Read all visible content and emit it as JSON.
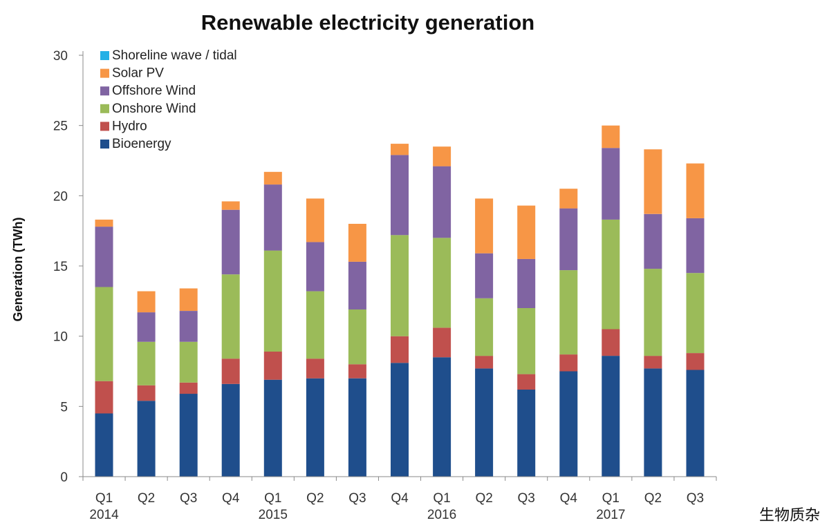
{
  "chart_data": {
    "type": "bar",
    "stacked": true,
    "title": "Renewable electricity generation",
    "ylabel": "Generation (TWh)",
    "xlabel": "",
    "ylim": [
      0,
      30
    ],
    "yticks": [
      0,
      5,
      10,
      15,
      20,
      25,
      30
    ],
    "grid": false,
    "legend_position": "top-left",
    "categories": [
      "Q1",
      "Q2",
      "Q3",
      "Q4",
      "Q1",
      "Q2",
      "Q3",
      "Q4",
      "Q1",
      "Q2",
      "Q3",
      "Q4",
      "Q1",
      "Q2",
      "Q3"
    ],
    "year_labels": [
      {
        "label": "2014",
        "category_index": 0
      },
      {
        "label": "2015",
        "category_index": 4
      },
      {
        "label": "2016",
        "category_index": 8
      },
      {
        "label": "2017",
        "category_index": 12
      }
    ],
    "series": [
      {
        "name": "Bioenergy",
        "color": "#1f4e8c",
        "values": [
          4.5,
          5.4,
          5.9,
          6.6,
          6.9,
          7.0,
          7.0,
          8.1,
          8.5,
          7.7,
          6.2,
          7.5,
          8.6,
          7.7,
          7.6
        ]
      },
      {
        "name": "Hydro",
        "color": "#c0504d",
        "values": [
          2.3,
          1.1,
          0.8,
          1.8,
          2.0,
          1.4,
          1.0,
          1.9,
          2.1,
          0.9,
          1.1,
          1.2,
          1.9,
          0.9,
          1.2
        ]
      },
      {
        "name": "Onshore Wind",
        "color": "#9bbb59",
        "values": [
          6.7,
          3.1,
          2.9,
          6.0,
          7.2,
          4.8,
          3.9,
          7.2,
          6.4,
          4.1,
          4.7,
          6.0,
          7.8,
          6.2,
          5.7
        ]
      },
      {
        "name": "Offshore Wind",
        "color": "#8064a2",
        "values": [
          4.3,
          2.1,
          2.2,
          4.6,
          4.7,
          3.5,
          3.4,
          5.7,
          5.1,
          3.2,
          3.5,
          4.4,
          5.1,
          3.9,
          3.9
        ]
      },
      {
        "name": "Solar PV",
        "color": "#f79646",
        "values": [
          0.5,
          1.5,
          1.6,
          0.6,
          0.9,
          3.1,
          2.7,
          0.8,
          1.4,
          3.9,
          3.8,
          1.4,
          1.6,
          4.6,
          3.9
        ]
      },
      {
        "name": "Shoreline wave / tidal",
        "color": "#23b0e6",
        "values": [
          0.0,
          0.0,
          0.0,
          0.0,
          0.0,
          0.0,
          0.0,
          0.0,
          0.0,
          0.0,
          0.0,
          0.0,
          0.0,
          0.0,
          0.0
        ]
      }
    ]
  },
  "side_note": "生物质杂"
}
